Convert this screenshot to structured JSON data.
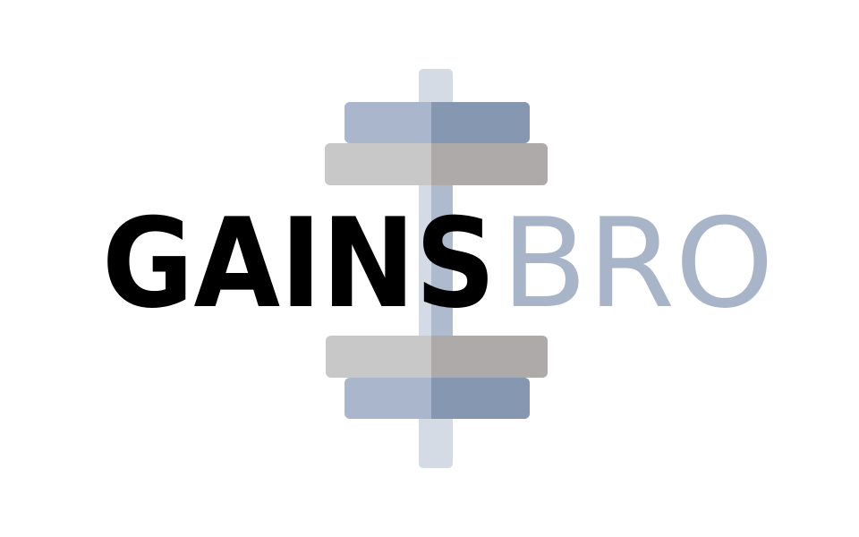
{
  "logo": {
    "word_primary": "GAINS",
    "word_secondary": "BRO",
    "colors": {
      "background": "#ffffff",
      "primary_text": "#000000",
      "secondary_text": "#a8b5c9",
      "bar_light": "#d4dbe5",
      "bar_mid": "#aebbcf",
      "plate_blue_light": "#aab6cb",
      "plate_blue_dark": "#8597b1",
      "plate_gray_light": "#c8c8c8",
      "plate_gray_dark": "#aeaaaa"
    },
    "icon": "dumbbell-icon"
  }
}
